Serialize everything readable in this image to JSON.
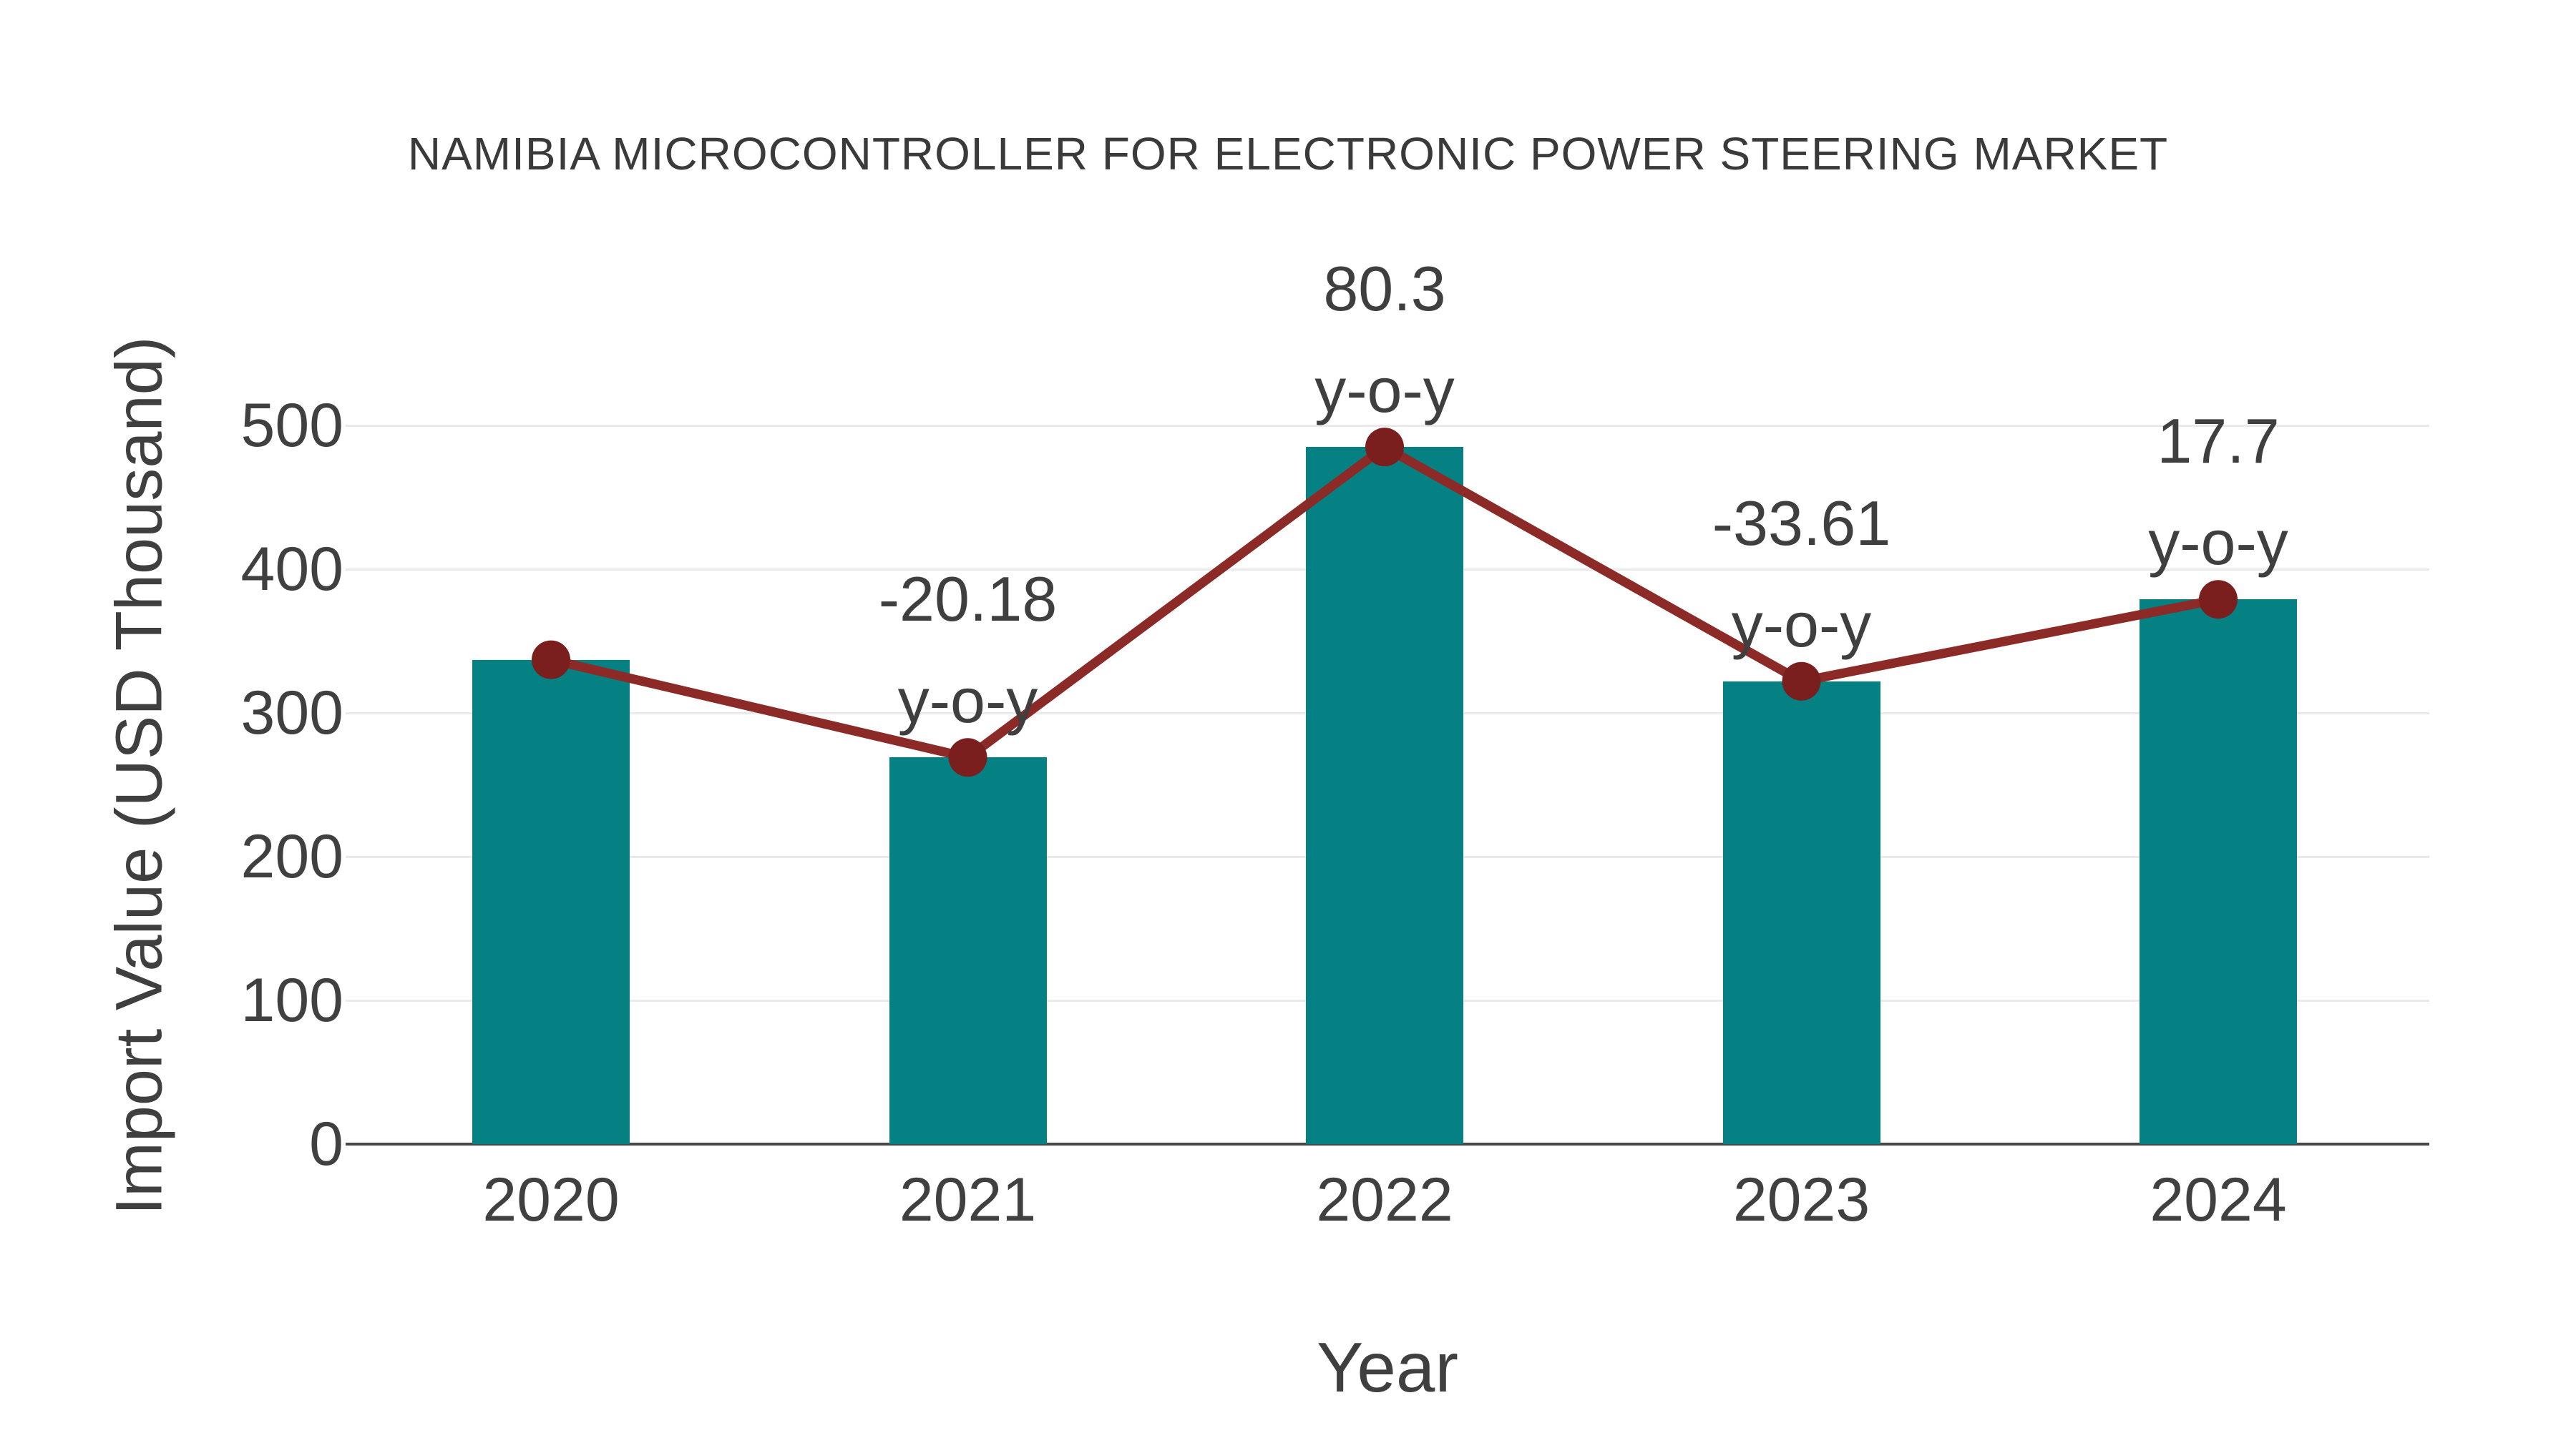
{
  "chart_data": {
    "type": "bar",
    "overlay": "line",
    "title": "NAMIBIA MICROCONTROLLER FOR ELECTRONIC POWER STEERING MARKET",
    "xlabel": "Year",
    "ylabel": "Import Value (USD Thousand)",
    "categories": [
      "2020",
      "2021",
      "2022",
      "2023",
      "2024"
    ],
    "values": [
      337,
      269,
      485,
      322,
      379
    ],
    "yoy_labels": [
      null,
      "-20.18",
      "80.3",
      "-33.61",
      "17.7"
    ],
    "yoy_suffix": "y-o-y",
    "yticks": [
      0,
      100,
      200,
      300,
      400,
      500
    ],
    "ylim": [
      0,
      500
    ],
    "grid": "horizontal",
    "legend": "none",
    "colors": {
      "bar": "#058083",
      "line": "#8B2A26",
      "marker": "#7A1E1E",
      "gridline": "#EAEAEA",
      "axis": "#474747",
      "tick_text": "#404040",
      "label_text": "#3F3F3F",
      "title_text": "#3A3A3A"
    }
  }
}
